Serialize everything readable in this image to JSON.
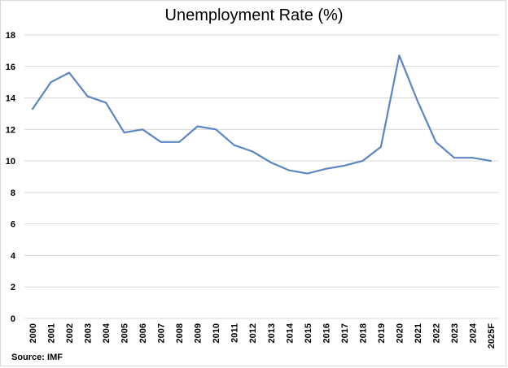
{
  "chart_data": {
    "type": "line",
    "title": "Unemployment Rate (%)",
    "xlabel": "",
    "ylabel": "",
    "categories": [
      "2000",
      "2001",
      "2002",
      "2003",
      "2004",
      "2005",
      "2006",
      "2007",
      "2008",
      "2009",
      "2010",
      "2011",
      "2012",
      "2013",
      "2014",
      "2015",
      "2016",
      "2017",
      "2018",
      "2019",
      "2020",
      "2021",
      "2022",
      "2023",
      "2024",
      "2025F"
    ],
    "series": [
      {
        "values": [
          13.3,
          15.0,
          15.6,
          14.1,
          13.7,
          11.8,
          12.0,
          11.2,
          11.2,
          12.2,
          12.0,
          11.0,
          10.6,
          9.9,
          9.4,
          9.2,
          9.5,
          9.7,
          10.0,
          10.9,
          16.7,
          13.8,
          11.2,
          10.2,
          10.2,
          10.0
        ]
      }
    ],
    "ylim": [
      0,
      18
    ],
    "yticks": [
      0,
      2,
      4,
      6,
      8,
      10,
      12,
      14,
      16,
      18
    ],
    "grid": true,
    "line_color": "#5b86c2",
    "grid_color": "#d9d9d9"
  },
  "source": "Source: IMF"
}
